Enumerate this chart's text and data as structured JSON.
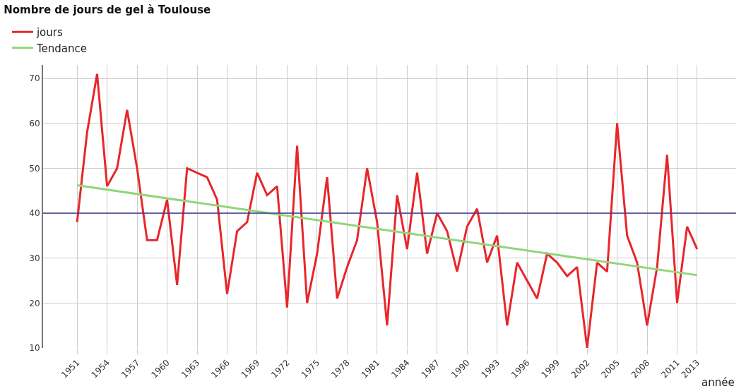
{
  "chart_data": {
    "type": "line",
    "title": "Nombre de jours de gel à Toulouse",
    "xlabel": "année",
    "x": [
      1951,
      1952,
      1953,
      1954,
      1955,
      1956,
      1957,
      1958,
      1959,
      1960,
      1961,
      1962,
      1963,
      1964,
      1965,
      1966,
      1967,
      1968,
      1969,
      1970,
      1971,
      1972,
      1973,
      1974,
      1975,
      1976,
      1977,
      1978,
      1979,
      1980,
      1981,
      1982,
      1983,
      1984,
      1985,
      1986,
      1987,
      1988,
      1989,
      1990,
      1991,
      1992,
      1993,
      1994,
      1995,
      1996,
      1997,
      1998,
      1999,
      2000,
      2001,
      2002,
      2003,
      2004,
      2005,
      2006,
      2007,
      2008,
      2009,
      2010,
      2011,
      2012,
      2013
    ],
    "series": [
      {
        "name": "jours",
        "color": "#e8262b",
        "values": [
          38,
          58,
          71,
          46,
          50,
          63,
          50,
          34,
          34,
          43,
          24,
          50,
          49,
          48,
          43,
          22,
          36,
          38,
          49,
          44,
          46,
          19,
          55,
          20,
          31,
          48,
          21,
          28,
          34,
          50,
          38,
          15,
          44,
          32,
          49,
          31,
          40,
          36,
          27,
          37,
          41,
          29,
          35,
          15,
          29,
          25,
          21,
          31,
          29,
          26,
          28,
          10,
          29,
          27,
          60,
          35,
          29,
          15,
          28,
          53,
          20,
          37,
          32
        ]
      },
      {
        "name": "Tendance",
        "color": "#8fd67a",
        "x": [
          1951,
          2013
        ],
        "values": [
          46.2,
          26.2
        ]
      }
    ],
    "ref_lines": [
      {
        "axis": "y",
        "value": 40,
        "color": "#3b3b8f"
      }
    ],
    "xlim": [
      1947.6,
      2016.9
    ],
    "xticks": [
      1951,
      1954,
      1957,
      1960,
      1963,
      1966,
      1969,
      1972,
      1975,
      1978,
      1981,
      1984,
      1987,
      1990,
      1993,
      1996,
      1999,
      2002,
      2005,
      2008,
      2011,
      2013
    ],
    "ylim": [
      10,
      73
    ],
    "yticks": [
      10,
      20,
      30,
      40,
      50,
      60,
      70
    ],
    "grid": true,
    "legend": "top left",
    "marker": "none",
    "line_style": "solid"
  }
}
